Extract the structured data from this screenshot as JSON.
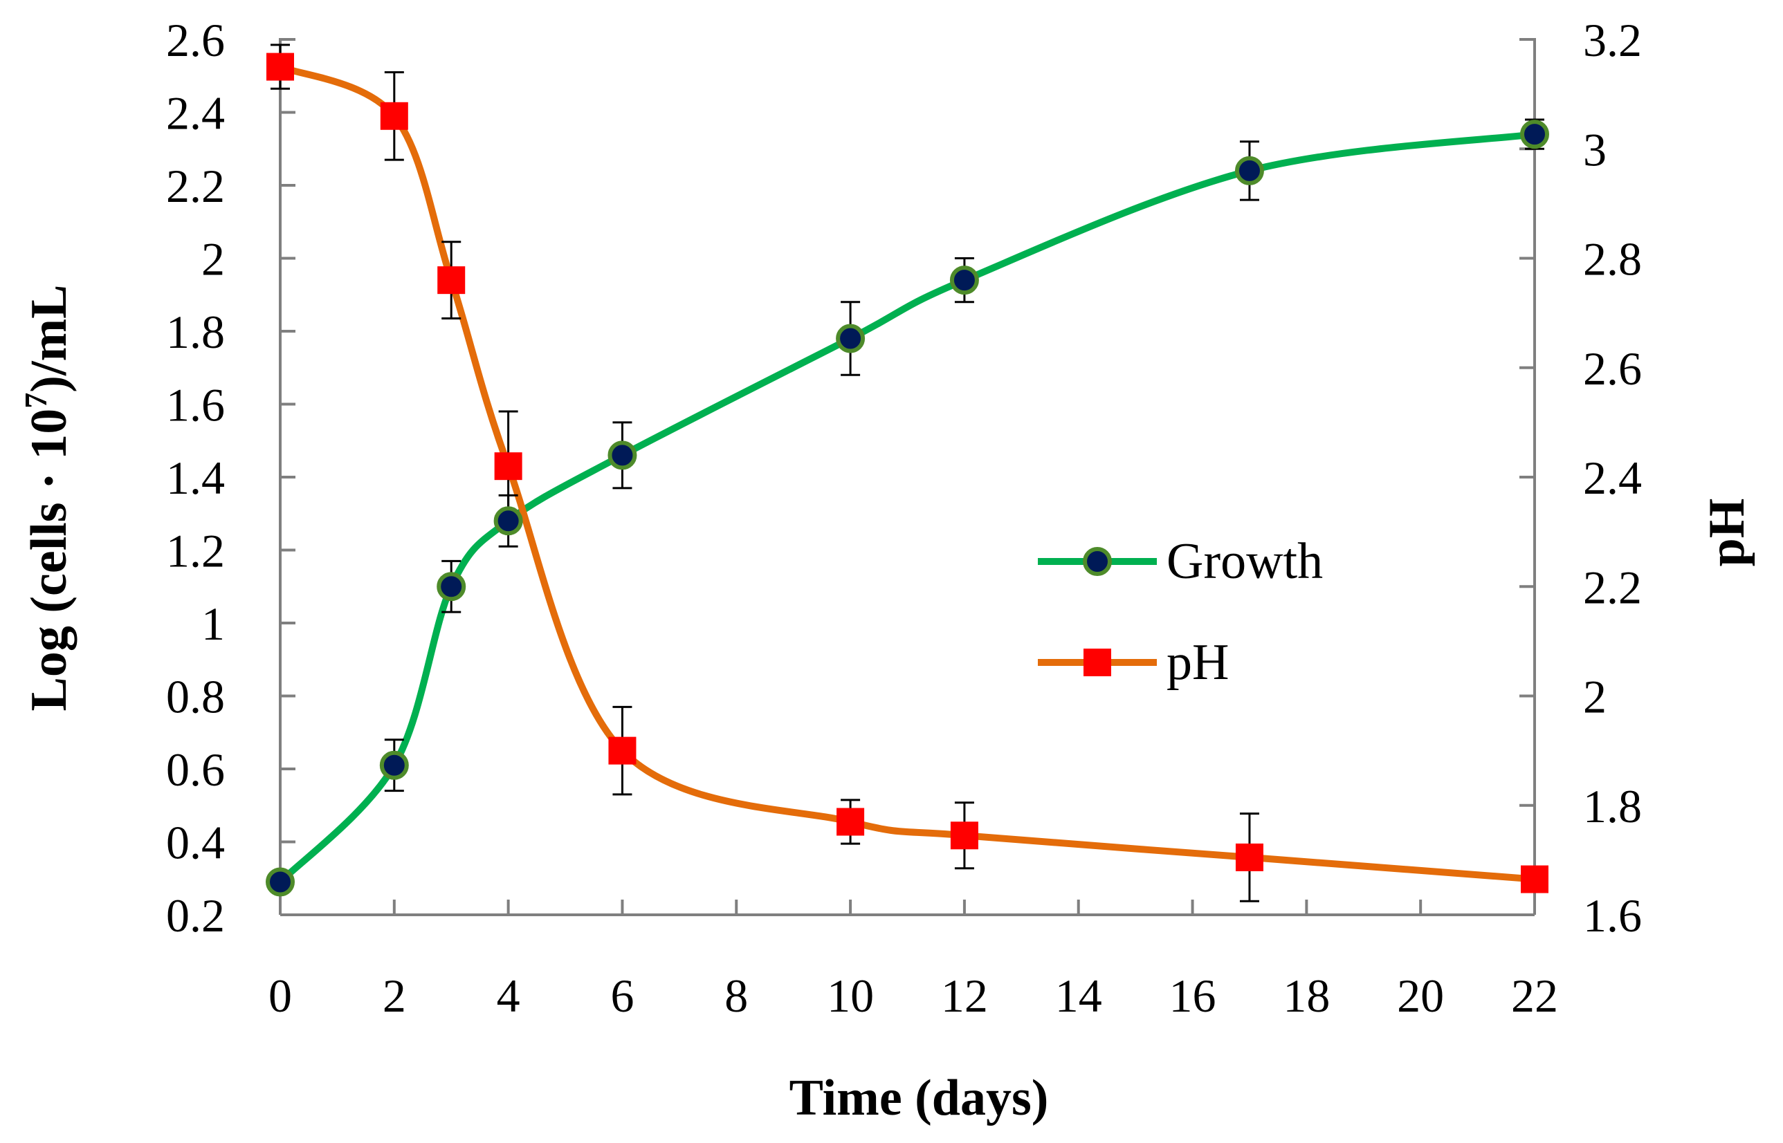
{
  "chart_data": {
    "type": "line",
    "xlabel": "Time (days)",
    "ylabel_left": {
      "prefix": "Log (cells · 10",
      "sup": "7",
      "suffix": ")/mL"
    },
    "ylabel_right": "pH",
    "xlim": [
      0,
      22
    ],
    "x_ticks": [
      "0",
      "2",
      "4",
      "6",
      "8",
      "10",
      "12",
      "14",
      "16",
      "18",
      "20",
      "22"
    ],
    "ylim_left": [
      0.2,
      2.6
    ],
    "y_left_ticks": [
      "0.2",
      "0.4",
      "0.6",
      "0.8",
      "1",
      "1.2",
      "1.4",
      "1.6",
      "1.8",
      "2",
      "2.2",
      "2.4",
      "2.6"
    ],
    "ylim_right": [
      1.6,
      3.2
    ],
    "y_right_ticks": [
      "1.6",
      "1.8",
      "2",
      "2.2",
      "2.4",
      "2.6",
      "2.8",
      "3",
      "3.2"
    ],
    "legend_position": "center-right",
    "series": [
      {
        "name": "Growth",
        "axis": "left",
        "line_color": "#00b050",
        "marker": "circle",
        "marker_fill": "#001a57",
        "marker_edge": "#4e8b2a",
        "x": [
          0,
          2,
          3,
          4,
          6,
          10,
          12,
          17,
          22
        ],
        "y": [
          0.29,
          0.61,
          1.1,
          1.28,
          1.46,
          1.78,
          1.94,
          2.24,
          2.34
        ],
        "err": [
          0.02,
          0.07,
          0.07,
          0.07,
          0.09,
          0.1,
          0.06,
          0.08,
          0.04
        ]
      },
      {
        "name": "pH",
        "axis": "right",
        "line_color": "#e46c0a",
        "marker": "square",
        "marker_fill": "#ff0000",
        "x": [
          0,
          2,
          3,
          4,
          6,
          10,
          12,
          17,
          22
        ],
        "y": [
          3.15,
          3.06,
          2.76,
          2.42,
          1.9,
          1.77,
          1.745,
          1.705,
          1.665
        ],
        "err": [
          0.04,
          0.08,
          0.07,
          0.1,
          0.08,
          0.04,
          0.06,
          0.08,
          0.0
        ]
      }
    ]
  }
}
